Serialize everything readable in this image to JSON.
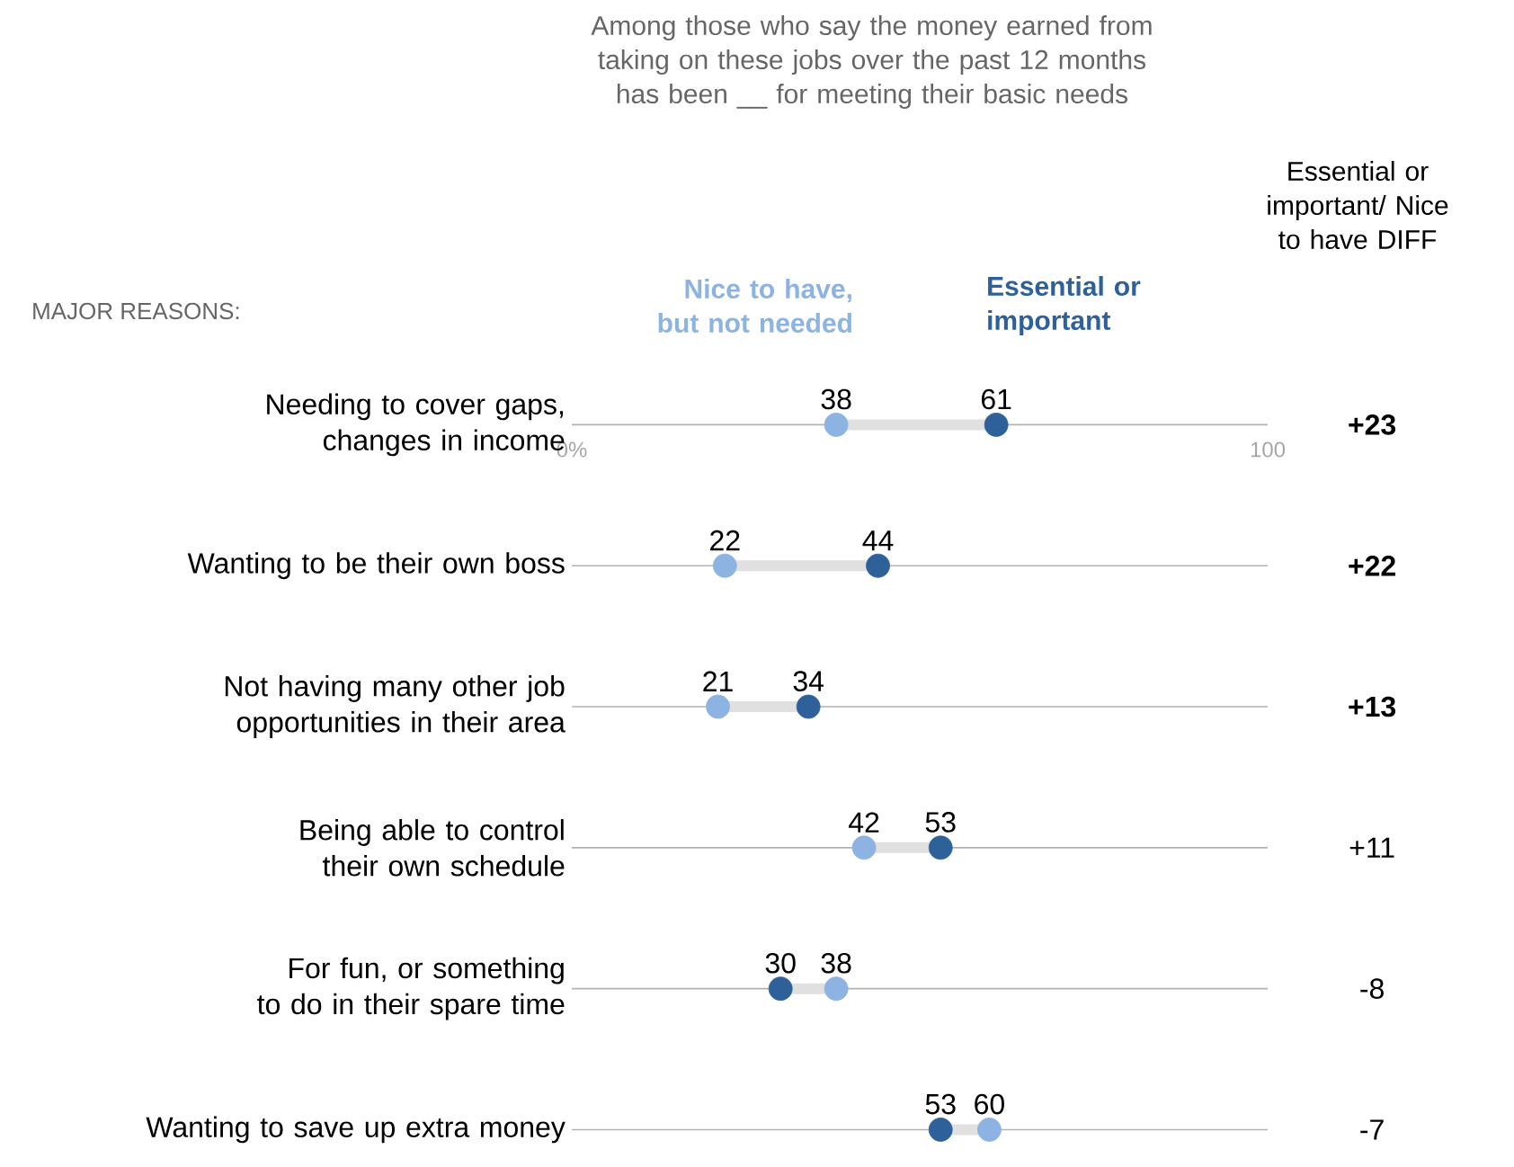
{
  "chart_data": {
    "type": "scatter",
    "orientation": "horizontal",
    "title": "Among those who say the money earned from taking on these jobs over the past 12 months has been __ for meeting their basic needs",
    "categories": [
      "Needing to cover gaps, changes in income",
      "Wanting to be their own boss",
      "Not having many other job opportunities in their area",
      "Being able to control their own schedule",
      "For fun, or something to do in their spare time",
      "Wanting to save up extra money"
    ],
    "series": [
      {
        "name": "Nice to have, but not needed",
        "color": "#8db3e2",
        "values": [
          38,
          22,
          21,
          42,
          38,
          60
        ]
      },
      {
        "name": "Essential or important",
        "color": "#2e6099",
        "values": [
          61,
          44,
          34,
          53,
          30,
          53
        ]
      }
    ],
    "xlim": [
      0,
      100
    ],
    "xticks": [
      {
        "value": 0,
        "label": "0%"
      },
      {
        "value": 100,
        "label": "100"
      }
    ],
    "data_labels": true,
    "grid": "y",
    "annotations": [
      "MAJOR REASONS:",
      "Essential or important/ Nice to have DIFF",
      "**+23**",
      "**+22**",
      "**+13**",
      "+11",
      "-8",
      "-7"
    ]
  }
}
